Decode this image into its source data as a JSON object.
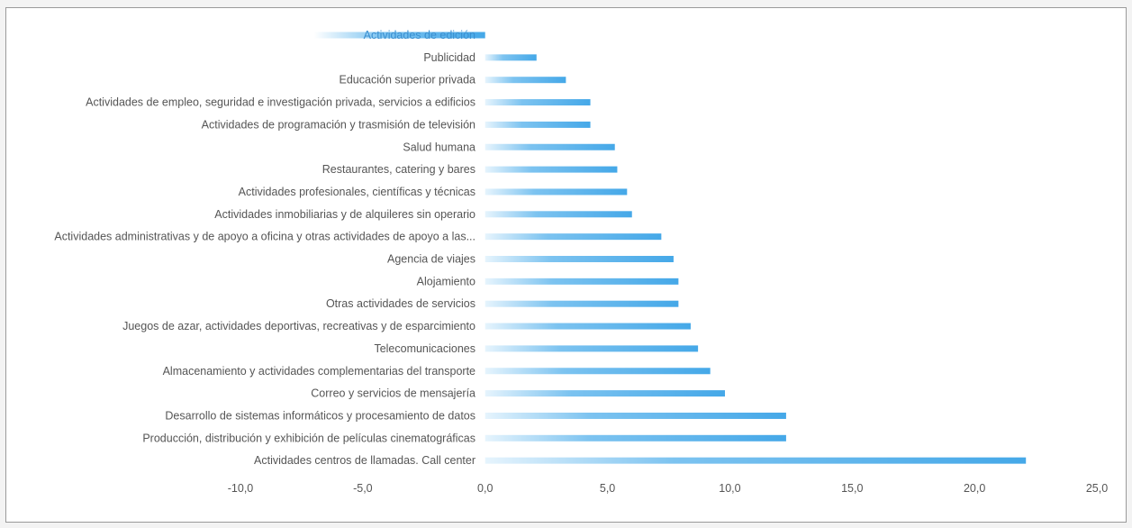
{
  "chart_data": {
    "type": "bar",
    "orientation": "horizontal",
    "categories": [
      "Actividades de edición",
      "Publicidad",
      "Educación superior privada",
      "Actividades de empleo, seguridad e investigación privada, servicios a edificios",
      "Actividades de programación y trasmisión de televisión",
      "Salud humana",
      "Restaurantes, catering y bares",
      "Actividades profesionales, científicas y técnicas",
      "Actividades inmobiliarias y de alquileres sin operario",
      "Actividades administrativas y de apoyo a oficina y otras actividades de apoyo a las...",
      "Agencia de viajes",
      "Alojamiento",
      "Otras actividades de servicios",
      "Juegos de azar, actividades deportivas, recreativas y de esparcimiento",
      "Telecomunicaciones",
      "Almacenamiento y actividades complementarias del transporte",
      "Correo y servicios de mensajería",
      "Desarrollo de sistemas informáticos y procesamiento de datos",
      "Producción, distribución y exhibición de películas cinematográficas",
      "Actividades centros de llamadas. Call center"
    ],
    "values": [
      -7.0,
      2.1,
      3.3,
      4.3,
      4.3,
      5.3,
      5.4,
      5.8,
      6.0,
      7.2,
      7.7,
      7.9,
      7.9,
      8.4,
      8.7,
      9.2,
      9.8,
      12.3,
      12.3,
      22.1
    ],
    "xlim": [
      -10,
      25
    ],
    "ticks": [
      "-10,0",
      "-5,0",
      "0,0",
      "5,0",
      "10,0",
      "15,0",
      "20,0",
      "25,0"
    ],
    "grid": false,
    "legend": "none",
    "title": "",
    "xlabel": "",
    "ylabel": "",
    "colors": {
      "bar": "#45a8e8",
      "bar_fade": "#e6f4fd",
      "label": "#555555"
    }
  }
}
